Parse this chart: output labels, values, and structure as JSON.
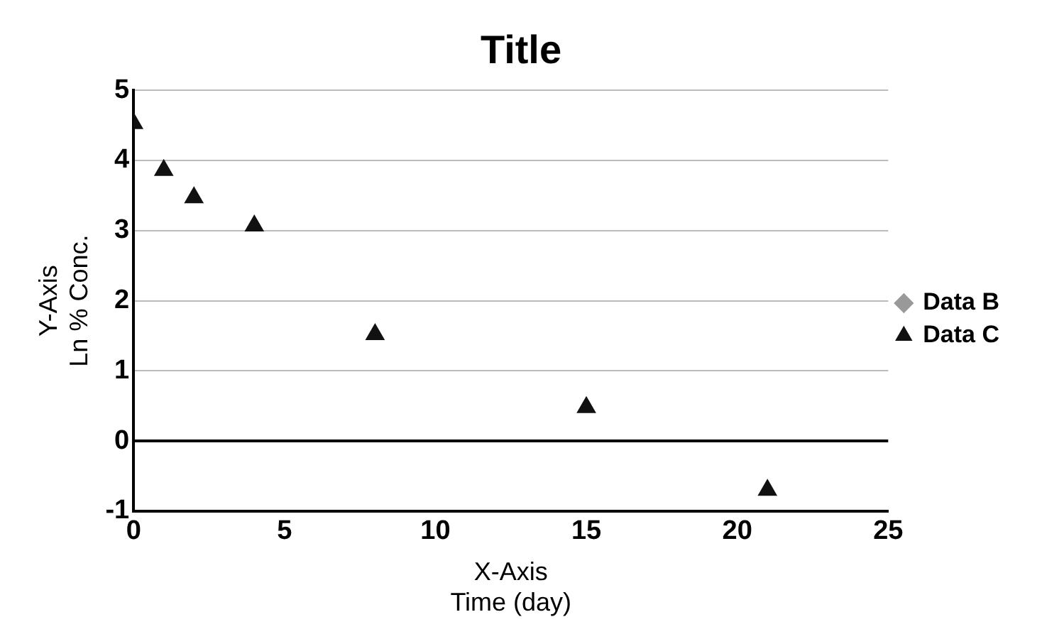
{
  "chart_data": {
    "type": "scatter",
    "title": "Title",
    "xlabel": "X-Axis\nTime (day)",
    "ylabel": "Y-Axis\nLn % Conc.",
    "x": [
      0,
      1,
      2,
      4,
      8,
      15,
      21
    ],
    "series": [
      {
        "name": "Data B",
        "color": "#999999",
        "marker": "diamond",
        "values": [
          null,
          null,
          null,
          null,
          null,
          null,
          null
        ]
      },
      {
        "name": "Data C",
        "color": "#111111",
        "marker": "triangle",
        "values": [
          4.53,
          3.86,
          3.47,
          3.07,
          1.52,
          0.48,
          -0.7
        ]
      }
    ],
    "xlim": [
      0,
      25
    ],
    "xticks": [
      0,
      5,
      10,
      15,
      20,
      25
    ],
    "ylim": [
      -1,
      5
    ],
    "yticks": [
      -1,
      0,
      1,
      2,
      3,
      4,
      5
    ],
    "grid": "y",
    "legend": "right"
  }
}
